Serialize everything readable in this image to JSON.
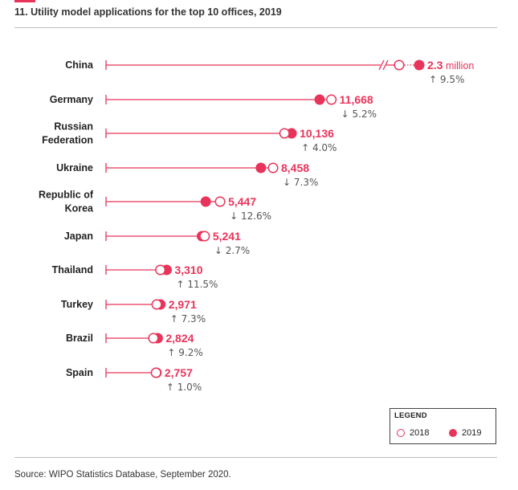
{
  "page": {
    "title": "11. Utility model applications for the top 10 offices, 2019",
    "source": "Source: WIPO Statistics Database, September 2020."
  },
  "colors": {
    "accent": "#e8345a",
    "text": "#222222",
    "muted": "#555555"
  },
  "legend": {
    "title": "LEGEND",
    "items": [
      {
        "label": "2018",
        "marker": "open-circle"
      },
      {
        "label": "2019",
        "marker": "filled-circle"
      }
    ]
  },
  "chart_data": {
    "type": "dot-plot",
    "title": "11. Utility model applications for the top 10 offices, 2019",
    "xlabel": "",
    "ylabel": "",
    "xlim": [
      0,
      12500
    ],
    "axis_break": "China values exceed the scale and are drawn past an axis break",
    "series": [
      {
        "name": "2018",
        "marker": "open-circle"
      },
      {
        "name": "2019",
        "marker": "filled-circle"
      }
    ],
    "categories": [
      "China",
      "Germany",
      "Russian Federation",
      "Ukraine",
      "Republic of Korea",
      "Japan",
      "Thailand",
      "Turkey",
      "Brazil",
      "Spain"
    ],
    "rows": [
      {
        "label_lines": [
          "China"
        ],
        "v2018": 2100000,
        "v2019": 2300000,
        "value_label": "2.3",
        "unit": "million",
        "change_dir": "up",
        "change_label": "9.5%",
        "broken": true
      },
      {
        "label_lines": [
          "Germany"
        ],
        "v2018": 12309,
        "v2019": 11668,
        "value_label": "11,668",
        "unit": "",
        "change_dir": "down",
        "change_label": "5.2%"
      },
      {
        "label_lines": [
          "Russian",
          "Federation"
        ],
        "v2018": 9747,
        "v2019": 10136,
        "value_label": "10,136",
        "unit": "",
        "change_dir": "up",
        "change_label": "4.0%"
      },
      {
        "label_lines": [
          "Ukraine"
        ],
        "v2018": 9123,
        "v2019": 8458,
        "value_label": "8,458",
        "unit": "",
        "change_dir": "down",
        "change_label": "7.3%"
      },
      {
        "label_lines": [
          "Republic of",
          "Korea"
        ],
        "v2018": 6232,
        "v2019": 5447,
        "value_label": "5,447",
        "unit": "",
        "change_dir": "down",
        "change_label": "12.6%"
      },
      {
        "label_lines": [
          "Japan"
        ],
        "v2018": 5388,
        "v2019": 5241,
        "value_label": "5,241",
        "unit": "",
        "change_dir": "down",
        "change_label": "2.7%"
      },
      {
        "label_lines": [
          "Thailand"
        ],
        "v2018": 2969,
        "v2019": 3310,
        "value_label": "3,310",
        "unit": "",
        "change_dir": "up",
        "change_label": "11.5%"
      },
      {
        "label_lines": [
          "Turkey"
        ],
        "v2018": 2769,
        "v2019": 2971,
        "value_label": "2,971",
        "unit": "",
        "change_dir": "up",
        "change_label": "7.3%"
      },
      {
        "label_lines": [
          "Brazil"
        ],
        "v2018": 2586,
        "v2019": 2824,
        "value_label": "2,824",
        "unit": "",
        "change_dir": "up",
        "change_label": "9.2%"
      },
      {
        "label_lines": [
          "Spain"
        ],
        "v2018": 2730,
        "v2019": 2757,
        "value_label": "2,757",
        "unit": "",
        "change_dir": "up",
        "change_label": "1.0%"
      }
    ]
  }
}
